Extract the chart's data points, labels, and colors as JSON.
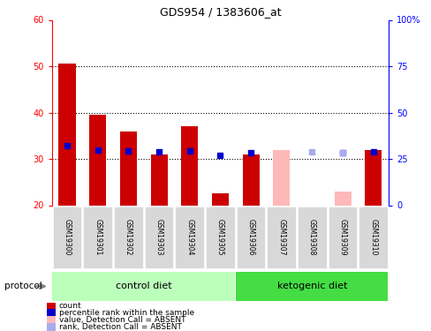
{
  "title": "GDS954 / 1383606_at",
  "samples": [
    "GSM19300",
    "GSM19301",
    "GSM19302",
    "GSM19303",
    "GSM19304",
    "GSM19305",
    "GSM19306",
    "GSM19307",
    "GSM19308",
    "GSM19309",
    "GSM19310"
  ],
  "count_values": [
    50.5,
    39.5,
    36.0,
    31.0,
    37.0,
    22.5,
    31.0,
    null,
    null,
    null,
    32.0
  ],
  "rank_values": [
    32.0,
    30.0,
    29.5,
    29.0,
    29.5,
    27.0,
    28.5,
    null,
    null,
    28.5,
    29.0
  ],
  "count_absent": [
    null,
    null,
    null,
    null,
    null,
    null,
    null,
    32.0,
    null,
    23.0,
    null
  ],
  "rank_absent": [
    null,
    null,
    null,
    null,
    null,
    null,
    null,
    null,
    29.0,
    28.5,
    null
  ],
  "ylim": [
    20,
    60
  ],
  "yticks": [
    20,
    30,
    40,
    50,
    60
  ],
  "y2lim": [
    0,
    100
  ],
  "y2ticks": [
    0,
    25,
    50,
    75,
    100
  ],
  "count_color": "#cc0000",
  "rank_color": "#0000cc",
  "count_absent_color": "#ffb8b8",
  "rank_absent_color": "#aaaaee",
  "control_color": "#bbffbb",
  "ketogenic_color": "#44dd44",
  "sample_box_color": "#d8d8d8",
  "legend_items": [
    {
      "label": "count",
      "color": "#cc0000"
    },
    {
      "label": "percentile rank within the sample",
      "color": "#0000cc"
    },
    {
      "label": "value, Detection Call = ABSENT",
      "color": "#ffb8b8"
    },
    {
      "label": "rank, Detection Call = ABSENT",
      "color": "#aaaaee"
    }
  ]
}
